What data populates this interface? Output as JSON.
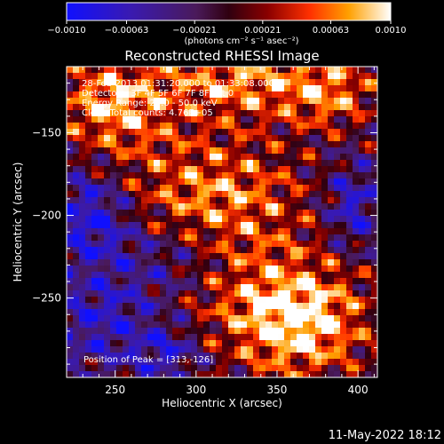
{
  "chart_data": {
    "type": "heatmap",
    "title": "Reconstructed RHESSI Image",
    "xlabel": "Heliocentric X (arcsec)",
    "ylabel": "Heliocentric Y (arcsec)",
    "xlim": [
      220,
      412
    ],
    "ylim": [
      -298,
      -110
    ],
    "x_ticks": [
      250,
      300,
      350,
      400
    ],
    "x_tick_labels": [
      "250",
      "300",
      "350",
      "400"
    ],
    "y_ticks": [
      -250,
      -200,
      -150
    ],
    "y_tick_labels": [
      "−250",
      "−200",
      "−150"
    ],
    "colorbar": {
      "range": [
        -0.001,
        0.001
      ],
      "ticks": [
        -0.001,
        -0.00063,
        -0.00021,
        0.00021,
        0.00063,
        0.001
      ],
      "tick_labels": [
        "−0.0010",
        "−0.00063",
        "−0.00021",
        "0.00021",
        "0.00063",
        "0.0010"
      ],
      "label": "(photons cm⁻² s⁻¹ asec⁻²)",
      "colormap": "blue-purple-red-orange-yellow-white"
    },
    "annotations": [
      "28-Feb-2013 01:31:20.000 to 01:33:08.000",
      "Detectors: 3F 4F 5F 6F 7F 8F  Att 0",
      "Energy Range: 25.0 - 50.0 keV",
      "Clean    Total counts: 4.76E+05"
    ],
    "peak_label": "Position of Peak = [313,-126]",
    "peak": [
      313,
      -126
    ],
    "grid": false
  },
  "footer": {
    "timestamp": "11-May-2022 18:12"
  },
  "colors": {
    "background": "#000000",
    "text": "#ffffff",
    "plot_frame": "#ffffff"
  }
}
